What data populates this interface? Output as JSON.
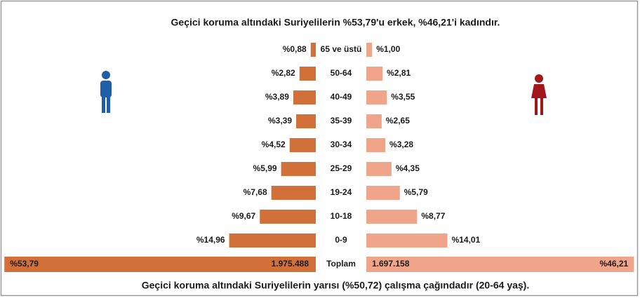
{
  "chart_data": {
    "type": "pyramid",
    "title": "Geçici koruma altındaki Suriyelilerin %53,79'u erkek, %46,21'i kadındır.",
    "footnote": "Geçici koruma altındaki Suriyelilerin yarısı (%50,72) çalışma çağındadır (20-64 yaş).",
    "categories": [
      "65 ve üstü",
      "50-64",
      "40-49",
      "35-39",
      "30-34",
      "25-29",
      "19-24",
      "10-18",
      "0-9"
    ],
    "series": [
      {
        "color": "#d2703a",
        "values": [
          0.88,
          2.82,
          3.89,
          3.39,
          4.52,
          5.99,
          7.68,
          9.67,
          14.96
        ],
        "value_labels": [
          "%0,88",
          "%2,82",
          "%3,89",
          "%3,39",
          "%4,52",
          "%5,99",
          "%7,68",
          "%9,67",
          "%14,96"
        ]
      },
      {
        "color": "#f0a48a",
        "values": [
          1.0,
          2.81,
          3.55,
          2.65,
          3.28,
          4.35,
          5.79,
          8.77,
          14.01
        ],
        "value_labels": [
          "%1,00",
          "%2,81",
          "%3,55",
          "%2,65",
          "%3,28",
          "%4,35",
          "%5,79",
          "%8,77",
          "%14,01"
        ]
      }
    ],
    "total": {
      "category": "Toplam",
      "values": [
        53.79,
        46.21
      ],
      "value_labels": [
        "%53,79",
        "%46,21"
      ],
      "counts": [
        1975488,
        1697158
      ],
      "count_labels": [
        "1.975.488",
        "1.697.158"
      ]
    }
  }
}
